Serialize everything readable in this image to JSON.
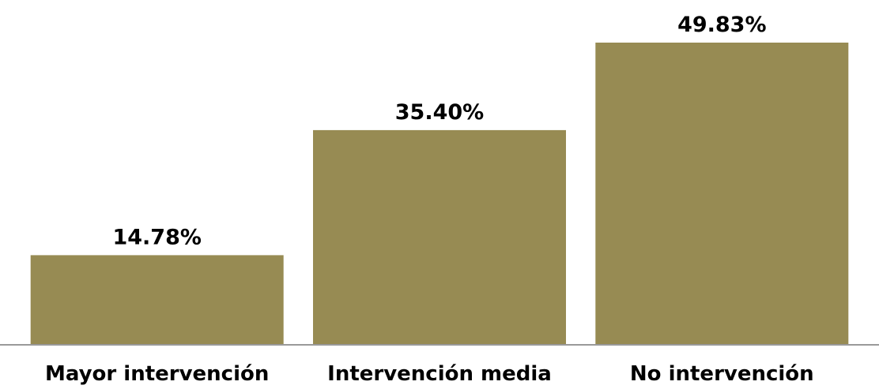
{
  "chart_data": {
    "type": "bar",
    "categories": [
      "Mayor intervención",
      "Intervención media",
      "No intervención"
    ],
    "values": [
      14.78,
      35.4,
      49.83
    ],
    "data_labels": [
      "14.78%",
      "35.40%",
      "49.83%"
    ],
    "title": "",
    "xlabel": "",
    "ylabel": "",
    "ylim": [
      0,
      49.83
    ],
    "grid": false,
    "legend": "none",
    "bar_color": "#978b53",
    "axis_color": "#999999"
  }
}
